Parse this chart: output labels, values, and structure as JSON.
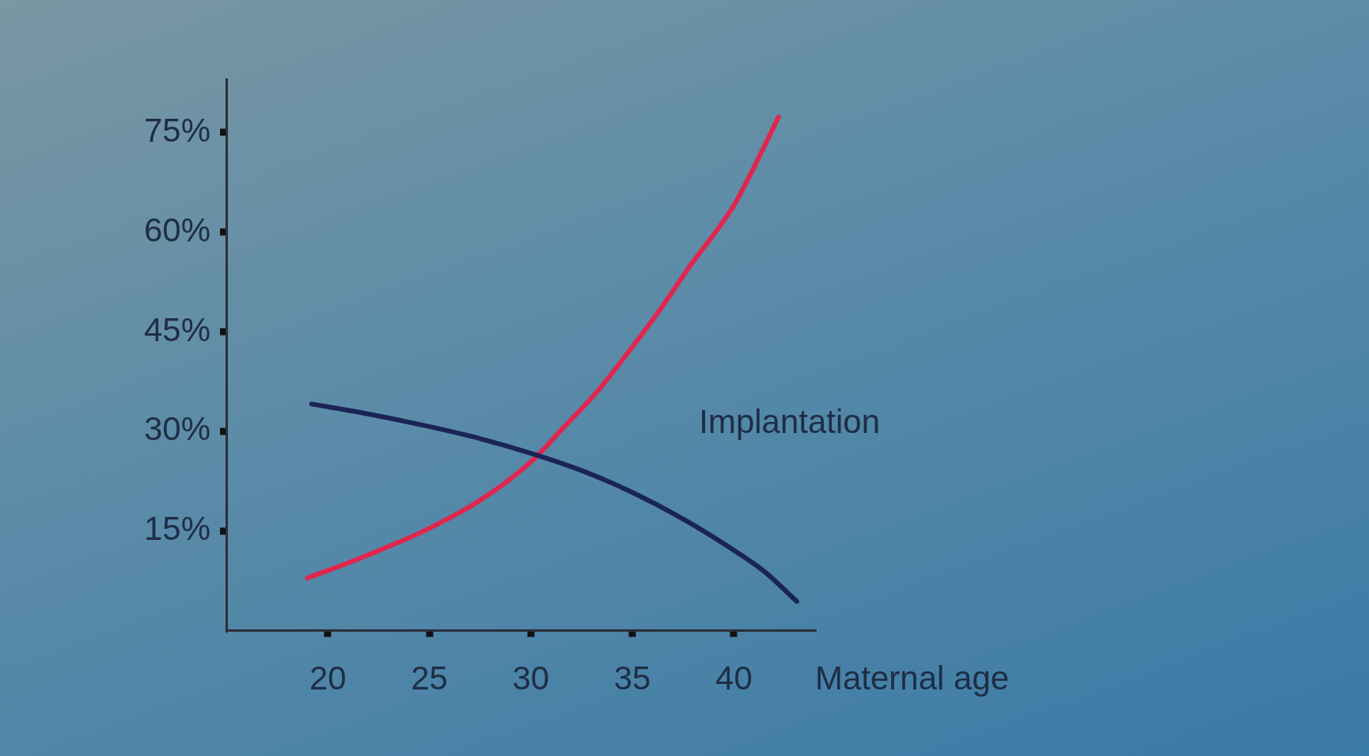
{
  "chart_data": {
    "type": "line",
    "xlabel": "Maternal age",
    "xlim": [
      15,
      44
    ],
    "ylim": [
      0,
      83
    ],
    "xticks": [
      20,
      25,
      30,
      35,
      40
    ],
    "yticks": [
      {
        "value": 15,
        "label": "15%"
      },
      {
        "value": 30,
        "label": "30%"
      },
      {
        "value": 45,
        "label": "45%"
      },
      {
        "value": 60,
        "label": "60%"
      },
      {
        "value": 75,
        "label": "75%"
      }
    ],
    "marker": "none",
    "line_style": "solid",
    "legend": false,
    "series": [
      {
        "name": "Implantation",
        "color": "#1b2456",
        "x": [
          19.2,
          22,
          25,
          27.5,
          30,
          32.5,
          35,
          37.5,
          40,
          41.5,
          43.1
        ],
        "values": [
          34.1,
          32.6,
          30.7,
          28.9,
          26.7,
          24.1,
          20.8,
          16.8,
          12.1,
          8.9,
          4.4
        ]
      },
      {
        "color": "#e0264e",
        "x": [
          19,
          22,
          25,
          27.5,
          30,
          31.5,
          33.3,
          35,
          36.5,
          37.8,
          40,
          41,
          42.2
        ],
        "values": [
          7.9,
          11.4,
          15.4,
          19.6,
          25.4,
          30.2,
          36.1,
          42.7,
          48.9,
          54.7,
          64,
          69.8,
          77.3
        ]
      }
    ]
  }
}
